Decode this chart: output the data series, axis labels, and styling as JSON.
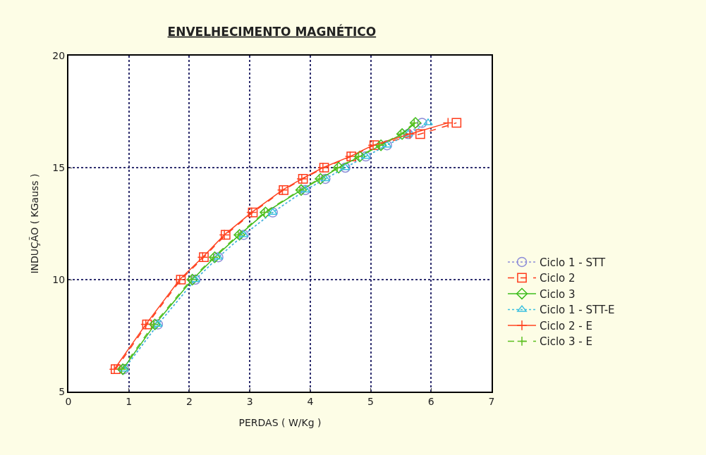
{
  "chart_data": {
    "type": "line",
    "title": "ENVELHECIMENTO MAGNÉTICO",
    "xlabel": "PERDAS ( W/Kg )",
    "ylabel": "INDUÇÃO ( KGauss )",
    "xlim": [
      0,
      7
    ],
    "xticks": [
      0,
      1,
      2,
      3,
      4,
      5,
      6,
      7
    ],
    "ylim": [
      5,
      20
    ],
    "yticks": [
      5,
      10,
      15,
      20
    ],
    "grid": true,
    "legend": "right",
    "series": [
      {
        "name": "Ciclo 1 - STT",
        "color": "#8c8cd8",
        "marker": "circle",
        "line_style": "dotted",
        "x": [
          0.92,
          1.48,
          2.1,
          2.48,
          2.9,
          3.38,
          3.92,
          4.25,
          4.58,
          4.92,
          5.27,
          5.62,
          5.85
        ],
        "values": [
          6,
          8,
          10,
          11,
          12,
          13,
          14,
          14.5,
          15,
          15.5,
          16,
          16.5,
          17
        ]
      },
      {
        "name": "Ciclo 2",
        "color": "#ff3a1a",
        "marker": "square",
        "line_style": "dashed",
        "x": [
          0.78,
          1.3,
          1.86,
          2.24,
          2.6,
          3.05,
          3.56,
          3.88,
          4.23,
          4.68,
          5.06,
          5.82,
          6.42
        ],
        "values": [
          6,
          8,
          10,
          11,
          12,
          13,
          14,
          14.5,
          15,
          15.5,
          16,
          16.5,
          17
        ]
      },
      {
        "name": "Ciclo 3",
        "color": "#3cbc1c",
        "marker": "diamond",
        "line_style": "solid",
        "x": [
          0.9,
          1.43,
          2.05,
          2.42,
          2.83,
          3.26,
          3.85,
          4.17,
          4.47,
          4.82,
          5.17,
          5.52,
          5.74
        ],
        "values": [
          6,
          8,
          10,
          11,
          12,
          13,
          14,
          14.5,
          15,
          15.5,
          16,
          16.5,
          17
        ]
      },
      {
        "name": "Ciclo 1 - STT-E",
        "color": "#3cc0e0",
        "marker": "triangle",
        "line_style": "dotted",
        "x": [
          0.92,
          1.48,
          2.1,
          2.48,
          2.9,
          3.38,
          3.92,
          4.25,
          4.58,
          4.92,
          5.27,
          5.62,
          5.95
        ],
        "values": [
          6,
          8,
          10,
          11,
          12,
          13,
          14,
          14.5,
          15,
          15.5,
          16,
          16.5,
          17
        ]
      },
      {
        "name": "Ciclo 2 - E",
        "color": "#ff4420",
        "marker": "cross",
        "line_style": "solid",
        "x": [
          0.76,
          1.28,
          1.84,
          2.22,
          2.58,
          3.03,
          3.54,
          3.86,
          4.21,
          4.66,
          5.04,
          5.65,
          6.28
        ],
        "values": [
          6,
          8,
          10,
          11,
          12,
          13,
          14,
          14.5,
          15,
          15.5,
          16,
          16.5,
          17
        ]
      },
      {
        "name": "Ciclo 3 - E",
        "color": "#5cc020",
        "marker": "cross",
        "line_style": "dashed",
        "x": [
          0.88,
          1.41,
          2.03,
          2.4,
          2.81,
          3.24,
          3.83,
          4.15,
          4.45,
          4.8,
          5.15,
          5.5,
          5.72
        ],
        "values": [
          6,
          8,
          10,
          11,
          12,
          13,
          14,
          14.5,
          15,
          15.5,
          16,
          16.5,
          17
        ]
      }
    ]
  }
}
